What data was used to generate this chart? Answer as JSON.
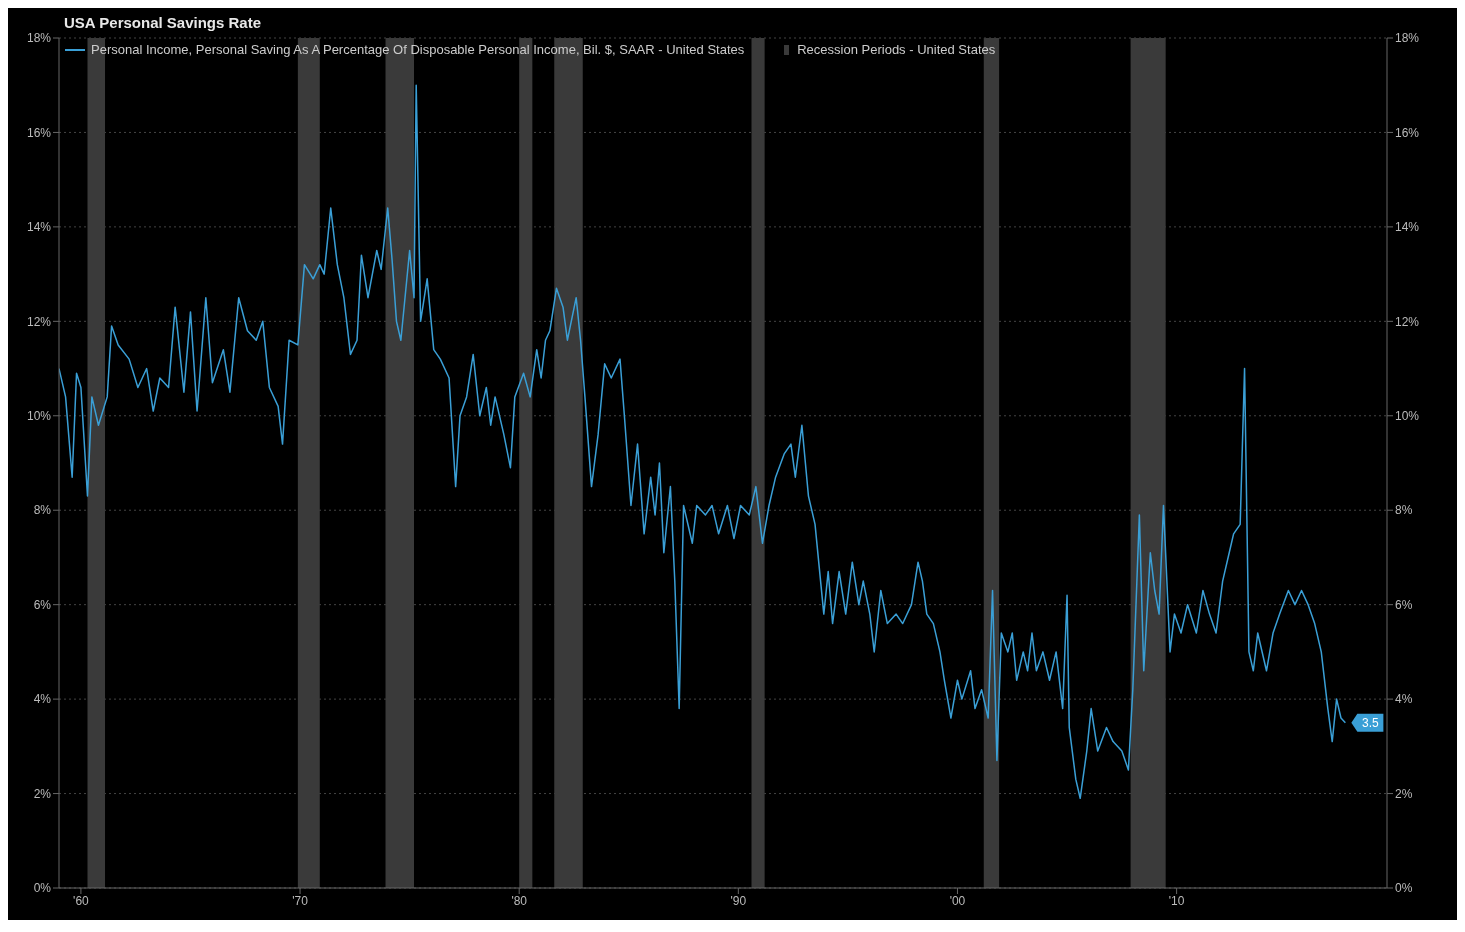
{
  "chart_data": {
    "type": "line",
    "title": "USA Personal Savings Rate",
    "x": [
      1959.0,
      1959.3,
      1959.6,
      1959.8,
      1960.0,
      1960.3,
      1960.5,
      1960.8,
      1961.2,
      1961.4,
      1961.7,
      1962.2,
      1962.6,
      1963.0,
      1963.3,
      1963.6,
      1964.0,
      1964.3,
      1964.7,
      1965.0,
      1965.3,
      1965.7,
      1966.0,
      1966.5,
      1966.8,
      1967.2,
      1967.6,
      1968.0,
      1968.3,
      1968.6,
      1969.0,
      1969.2,
      1969.5,
      1969.9,
      1970.2,
      1970.6,
      1970.9,
      1971.1,
      1971.4,
      1971.7,
      1972.0,
      1972.3,
      1972.6,
      1972.8,
      1973.1,
      1973.5,
      1973.7,
      1974.0,
      1974.2,
      1974.4,
      1974.6,
      1975.0,
      1975.2,
      1975.3,
      1975.5,
      1975.8,
      1976.1,
      1976.4,
      1976.8,
      1977.1,
      1977.3,
      1977.6,
      1977.9,
      1978.2,
      1978.5,
      1978.7,
      1978.9,
      1979.3,
      1979.6,
      1979.8,
      1980.2,
      1980.5,
      1980.8,
      1981.0,
      1981.2,
      1981.4,
      1981.7,
      1982.0,
      1982.2,
      1982.6,
      1982.8,
      1983.0,
      1983.3,
      1983.6,
      1983.9,
      1984.2,
      1984.6,
      1984.8,
      1985.1,
      1985.4,
      1985.7,
      1986.0,
      1986.2,
      1986.4,
      1986.6,
      1986.9,
      1987.1,
      1987.3,
      1987.5,
      1987.9,
      1988.1,
      1988.5,
      1988.8,
      1989.1,
      1989.5,
      1989.8,
      1990.1,
      1990.5,
      1990.8,
      1991.1,
      1991.4,
      1991.7,
      1992.1,
      1992.4,
      1992.6,
      1992.9,
      1993.2,
      1993.5,
      1993.9,
      1994.1,
      1994.3,
      1994.6,
      1994.9,
      1995.2,
      1995.5,
      1995.7,
      1996.0,
      1996.2,
      1996.5,
      1996.8,
      1997.2,
      1997.5,
      1997.9,
      1998.2,
      1998.4,
      1998.6,
      1998.9,
      1999.2,
      1999.4,
      1999.7,
      2000.0,
      2000.2,
      2000.6,
      2000.8,
      2001.1,
      2001.4,
      2001.6,
      2001.8,
      2002.0,
      2002.3,
      2002.5,
      2002.7,
      2003.0,
      2003.2,
      2003.4,
      2003.6,
      2003.9,
      2004.2,
      2004.5,
      2004.8,
      2005.0,
      2005.1,
      2005.4,
      2005.6,
      2005.9,
      2006.1,
      2006.4,
      2006.8,
      2007.1,
      2007.5,
      2007.8,
      2008.0,
      2008.3,
      2008.5,
      2008.8,
      2009.0,
      2009.2,
      2009.4,
      2009.7,
      2009.9,
      2010.2,
      2010.5,
      2010.9,
      2011.2,
      2011.5,
      2011.8,
      2012.1,
      2012.4,
      2012.6,
      2012.9,
      2013.1,
      2013.3,
      2013.5,
      2013.7,
      2014.1,
      2014.4,
      2014.7,
      2015.1,
      2015.4,
      2015.7,
      2016.0,
      2016.3,
      2016.6,
      2016.9,
      2017.1,
      2017.3,
      2017.5,
      2017.7
    ],
    "series": [
      {
        "name": "Personal Income, Personal Saving As A Percentage Of Disposable Personal Income, Bil. $, SAAR - United States",
        "color": "#3a9fd6",
        "values": [
          11.0,
          10.4,
          8.7,
          10.9,
          10.6,
          8.3,
          10.4,
          9.8,
          10.4,
          11.9,
          11.5,
          11.2,
          10.6,
          11.0,
          10.1,
          10.8,
          10.6,
          12.3,
          10.5,
          12.2,
          10.1,
          12.5,
          10.7,
          11.4,
          10.5,
          12.5,
          11.8,
          11.6,
          12.0,
          10.6,
          10.2,
          9.4,
          11.6,
          11.5,
          13.2,
          12.9,
          13.2,
          13.0,
          14.4,
          13.2,
          12.5,
          11.3,
          11.6,
          13.4,
          12.5,
          13.5,
          13.1,
          14.4,
          13.3,
          12.0,
          11.6,
          13.5,
          12.5,
          17.0,
          12.0,
          12.9,
          11.4,
          11.2,
          10.8,
          8.5,
          10.0,
          10.4,
          11.3,
          10.0,
          10.6,
          9.8,
          10.4,
          9.6,
          8.9,
          10.4,
          10.9,
          10.4,
          11.4,
          10.8,
          11.6,
          11.8,
          12.7,
          12.3,
          11.6,
          12.5,
          11.6,
          10.4,
          8.5,
          9.6,
          11.1,
          10.8,
          11.2,
          10.0,
          8.1,
          9.4,
          7.5,
          8.7,
          7.9,
          9.0,
          7.1,
          8.5,
          6.5,
          3.8,
          8.1,
          7.3,
          8.1,
          7.9,
          8.1,
          7.5,
          8.1,
          7.4,
          8.1,
          7.9,
          8.5,
          7.3,
          8.1,
          8.7,
          9.2,
          9.4,
          8.7,
          9.8,
          8.3,
          7.7,
          5.8,
          6.7,
          5.6,
          6.7,
          5.8,
          6.9,
          6.0,
          6.5,
          5.8,
          5.0,
          6.3,
          5.6,
          5.8,
          5.6,
          6.0,
          6.9,
          6.5,
          5.8,
          5.6,
          5.0,
          4.4,
          3.6,
          4.4,
          4.0,
          4.6,
          3.8,
          4.2,
          3.6,
          6.3,
          2.7,
          5.4,
          5.0,
          5.4,
          4.4,
          5.0,
          4.6,
          5.4,
          4.6,
          5.0,
          4.4,
          5.0,
          3.8,
          6.2,
          3.4,
          2.3,
          1.9,
          2.9,
          3.8,
          2.9,
          3.4,
          3.1,
          2.9,
          2.5,
          4.2,
          7.9,
          4.6,
          7.1,
          6.3,
          5.8,
          8.1,
          5.0,
          5.8,
          5.4,
          6.0,
          5.4,
          6.3,
          5.8,
          5.4,
          6.5,
          7.1,
          7.5,
          7.7,
          11.0,
          5.0,
          4.6,
          5.4,
          4.6,
          5.4,
          5.8,
          6.3,
          6.0,
          6.3,
          6.0,
          5.6,
          5.0,
          3.8,
          3.1,
          4.0,
          3.6,
          3.5
        ],
        "value_labels": [
          null,
          null,
          null,
          null,
          null,
          null,
          null,
          null,
          null,
          null,
          null,
          null,
          null,
          null,
          null,
          null,
          null,
          null,
          null,
          null,
          null,
          null,
          null,
          null,
          null,
          null,
          null,
          null,
          null,
          null,
          null,
          null,
          null,
          null,
          null,
          null,
          null,
          null,
          null,
          null,
          null,
          null,
          null,
          null,
          null,
          null,
          null,
          null,
          null,
          null,
          null,
          null,
          null,
          null,
          null,
          null,
          null,
          null,
          null,
          null,
          null,
          null,
          null,
          null,
          null,
          null,
          null,
          null,
          null,
          null,
          null,
          null,
          null,
          null,
          null,
          null,
          null,
          null,
          null,
          null,
          null,
          null,
          null,
          null,
          null,
          null,
          null,
          null,
          null,
          null,
          null,
          null,
          null,
          null,
          null,
          null,
          null,
          null,
          null,
          null,
          null,
          null,
          null,
          null,
          null,
          null,
          null,
          null,
          null,
          null,
          null,
          null,
          null,
          null,
          null,
          null,
          null,
          null,
          null,
          null,
          null,
          null,
          null,
          null,
          null,
          null,
          null,
          null,
          null,
          null,
          null,
          null,
          null,
          null,
          null,
          null,
          null,
          null,
          null,
          null,
          null,
          null,
          null,
          null,
          null,
          null,
          null,
          null,
          null,
          null,
          null,
          null,
          null,
          null,
          null,
          null,
          null,
          null,
          null,
          null,
          null,
          null,
          null,
          null,
          null,
          null,
          null,
          null,
          null,
          null,
          null,
          null,
          null,
          null,
          null,
          null,
          null,
          null,
          null,
          null,
          null,
          null,
          null,
          null,
          null,
          null,
          null,
          null,
          null,
          null,
          null,
          null,
          null,
          null,
          null,
          null,
          null,
          null,
          null,
          null,
          null,
          null,
          null,
          null,
          null,
          null,
          null,
          "3.5"
        ]
      }
    ],
    "bands": [
      {
        "axis": "x",
        "from": 1960.3,
        "to": 1961.1,
        "color": "#3a3a3a"
      },
      {
        "axis": "x",
        "from": 1969.9,
        "to": 1970.9,
        "color": "#3a3a3a"
      },
      {
        "axis": "x",
        "from": 1973.9,
        "to": 1975.2,
        "color": "#3a3a3a"
      },
      {
        "axis": "x",
        "from": 1980.0,
        "to": 1980.6,
        "color": "#3a3a3a"
      },
      {
        "axis": "x",
        "from": 1981.6,
        "to": 1982.9,
        "color": "#3a3a3a"
      },
      {
        "axis": "x",
        "from": 1990.6,
        "to": 1991.2,
        "color": "#3a3a3a"
      },
      {
        "axis": "x",
        "from": 2001.2,
        "to": 2001.9,
        "color": "#3a3a3a"
      },
      {
        "axis": "x",
        "from": 2007.9,
        "to": 2009.5,
        "color": "#3a3a3a"
      }
    ],
    "annotations": [
      "Recession Periods - United States"
    ],
    "xlim": [
      1959.0,
      2019.6
    ],
    "xticks": [
      {
        "value": 1960,
        "label": "'60"
      },
      {
        "value": 1970,
        "label": "'70"
      },
      {
        "value": 1980,
        "label": "'80"
      },
      {
        "value": 1990,
        "label": "'90"
      },
      {
        "value": 2000,
        "label": "'00"
      },
      {
        "value": 2010,
        "label": "'10"
      }
    ],
    "ylim": [
      0,
      18
    ],
    "yticks": [
      {
        "value": 0,
        "label": "0%"
      },
      {
        "value": 2,
        "label": "2%"
      },
      {
        "value": 4,
        "label": "4%"
      },
      {
        "value": 6,
        "label": "6%"
      },
      {
        "value": 8,
        "label": "8%"
      },
      {
        "value": 10,
        "label": "10%"
      },
      {
        "value": 12,
        "label": "12%"
      },
      {
        "value": 14,
        "label": "14%"
      },
      {
        "value": 16,
        "label": "16%"
      },
      {
        "value": 18,
        "label": "18%"
      }
    ],
    "y2lim": [
      0,
      18
    ],
    "y2ticks": [
      {
        "value": 0,
        "label": "0%"
      },
      {
        "value": 2,
        "label": "2%"
      },
      {
        "value": 4,
        "label": "4%"
      },
      {
        "value": 6,
        "label": "6%"
      },
      {
        "value": 8,
        "label": "8%"
      },
      {
        "value": 10,
        "label": "10%"
      },
      {
        "value": 12,
        "label": "12%"
      },
      {
        "value": 14,
        "label": "14%"
      },
      {
        "value": 16,
        "label": "16%"
      },
      {
        "value": 18,
        "label": "18%"
      }
    ],
    "grid": "y",
    "legend": "top left",
    "marker": "none",
    "line_style": "solid"
  }
}
